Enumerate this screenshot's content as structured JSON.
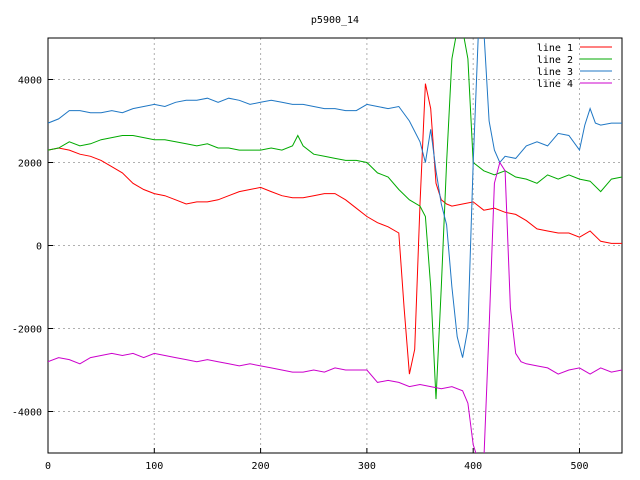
{
  "chart_data": {
    "type": "line",
    "title": "p5900_14",
    "xlabel": "",
    "ylabel": "",
    "xlim": [
      0,
      540
    ],
    "ylim": [
      -5000,
      5000
    ],
    "xticks": [
      0,
      100,
      200,
      300,
      400,
      500
    ],
    "yticks": [
      -4000,
      -2000,
      0,
      2000,
      4000
    ],
    "grid": true,
    "legend_position": "top-right",
    "series": [
      {
        "name": "line 1",
        "color": "#ff0000",
        "x": [
          0,
          10,
          20,
          30,
          40,
          50,
          60,
          70,
          80,
          90,
          100,
          110,
          120,
          130,
          140,
          150,
          160,
          170,
          180,
          190,
          200,
          210,
          220,
          230,
          240,
          250,
          260,
          270,
          280,
          290,
          300,
          310,
          320,
          330,
          335,
          340,
          345,
          350,
          355,
          360,
          365,
          370,
          375,
          380,
          390,
          400,
          410,
          420,
          430,
          440,
          450,
          460,
          470,
          480,
          490,
          500,
          510,
          520,
          530,
          540
        ],
        "y": [
          2300,
          2350,
          2300,
          2200,
          2150,
          2050,
          1900,
          1750,
          1500,
          1350,
          1250,
          1200,
          1100,
          1000,
          1050,
          1050,
          1100,
          1200,
          1300,
          1350,
          1400,
          1300,
          1200,
          1150,
          1150,
          1200,
          1250,
          1250,
          1100,
          900,
          700,
          550,
          450,
          300,
          -1500,
          -3100,
          -2500,
          1000,
          3900,
          3300,
          1500,
          1100,
          1000,
          950,
          1000,
          1050,
          850,
          900,
          800,
          750,
          600,
          400,
          350,
          300,
          300,
          200,
          350,
          100,
          50,
          50
        ]
      },
      {
        "name": "line 2",
        "color": "#00aa00",
        "x": [
          0,
          10,
          20,
          30,
          40,
          50,
          60,
          70,
          80,
          90,
          100,
          110,
          120,
          130,
          140,
          150,
          160,
          170,
          180,
          190,
          200,
          210,
          220,
          230,
          235,
          240,
          250,
          260,
          270,
          280,
          290,
          300,
          310,
          320,
          330,
          340,
          350,
          355,
          360,
          365,
          370,
          375,
          380,
          385,
          390,
          395,
          400,
          410,
          420,
          430,
          440,
          450,
          460,
          470,
          480,
          490,
          500,
          510,
          520,
          530,
          540
        ],
        "y": [
          2300,
          2350,
          2500,
          2400,
          2450,
          2550,
          2600,
          2650,
          2650,
          2600,
          2550,
          2550,
          2500,
          2450,
          2400,
          2450,
          2350,
          2350,
          2300,
          2300,
          2300,
          2350,
          2300,
          2400,
          2650,
          2400,
          2200,
          2150,
          2100,
          2050,
          2050,
          2000,
          1750,
          1650,
          1350,
          1100,
          950,
          700,
          -1000,
          -3700,
          -1000,
          2000,
          4500,
          5200,
          5200,
          4500,
          2000,
          1800,
          1700,
          1800,
          1650,
          1600,
          1500,
          1700,
          1600,
          1700,
          1600,
          1550,
          1300,
          1600,
          1650
        ]
      },
      {
        "name": "line 3",
        "color": "#1f77c4",
        "x": [
          0,
          10,
          20,
          30,
          40,
          50,
          60,
          70,
          80,
          90,
          100,
          110,
          120,
          130,
          140,
          150,
          160,
          170,
          180,
          190,
          200,
          210,
          220,
          230,
          240,
          250,
          260,
          270,
          280,
          290,
          300,
          310,
          320,
          330,
          340,
          350,
          355,
          360,
          365,
          370,
          375,
          380,
          385,
          390,
          395,
          400,
          405,
          410,
          415,
          420,
          425,
          430,
          440,
          450,
          460,
          470,
          480,
          490,
          500,
          505,
          510,
          515,
          520,
          530,
          540
        ],
        "y": [
          2950,
          3050,
          3250,
          3250,
          3200,
          3200,
          3250,
          3200,
          3300,
          3350,
          3400,
          3350,
          3450,
          3500,
          3500,
          3550,
          3450,
          3550,
          3500,
          3400,
          3450,
          3500,
          3450,
          3400,
          3400,
          3350,
          3300,
          3300,
          3250,
          3250,
          3400,
          3350,
          3300,
          3350,
          3000,
          2500,
          2000,
          2800,
          1800,
          1000,
          500,
          -1000,
          -2200,
          -2700,
          -2000,
          2000,
          5200,
          5200,
          3000,
          2300,
          2000,
          2150,
          2100,
          2400,
          2500,
          2400,
          2700,
          2650,
          2300,
          2900,
          3300,
          2950,
          2900,
          2950,
          2950
        ]
      },
      {
        "name": "line 4",
        "color": "#cc00cc",
        "x": [
          0,
          10,
          20,
          30,
          40,
          50,
          60,
          70,
          80,
          90,
          100,
          110,
          120,
          130,
          140,
          150,
          160,
          170,
          180,
          190,
          200,
          210,
          220,
          230,
          240,
          250,
          260,
          270,
          280,
          290,
          300,
          310,
          320,
          330,
          340,
          350,
          360,
          370,
          380,
          390,
          395,
          400,
          405,
          410,
          415,
          420,
          425,
          430,
          435,
          440,
          445,
          450,
          460,
          470,
          480,
          490,
          500,
          510,
          520,
          530,
          540
        ],
        "y": [
          -2800,
          -2700,
          -2750,
          -2850,
          -2700,
          -2650,
          -2600,
          -2650,
          -2600,
          -2700,
          -2600,
          -2650,
          -2700,
          -2750,
          -2800,
          -2750,
          -2800,
          -2850,
          -2900,
          -2850,
          -2900,
          -2950,
          -3000,
          -3050,
          -3050,
          -3000,
          -3050,
          -2950,
          -3000,
          -3000,
          -3000,
          -3300,
          -3250,
          -3300,
          -3400,
          -3350,
          -3400,
          -3450,
          -3400,
          -3500,
          -3800,
          -4800,
          -5200,
          -5200,
          -2000,
          1500,
          2000,
          1800,
          -1500,
          -2600,
          -2800,
          -2850,
          -2900,
          -2950,
          -3100,
          -3000,
          -2950,
          -3100,
          -2950,
          -3050,
          -3000
        ]
      }
    ]
  }
}
